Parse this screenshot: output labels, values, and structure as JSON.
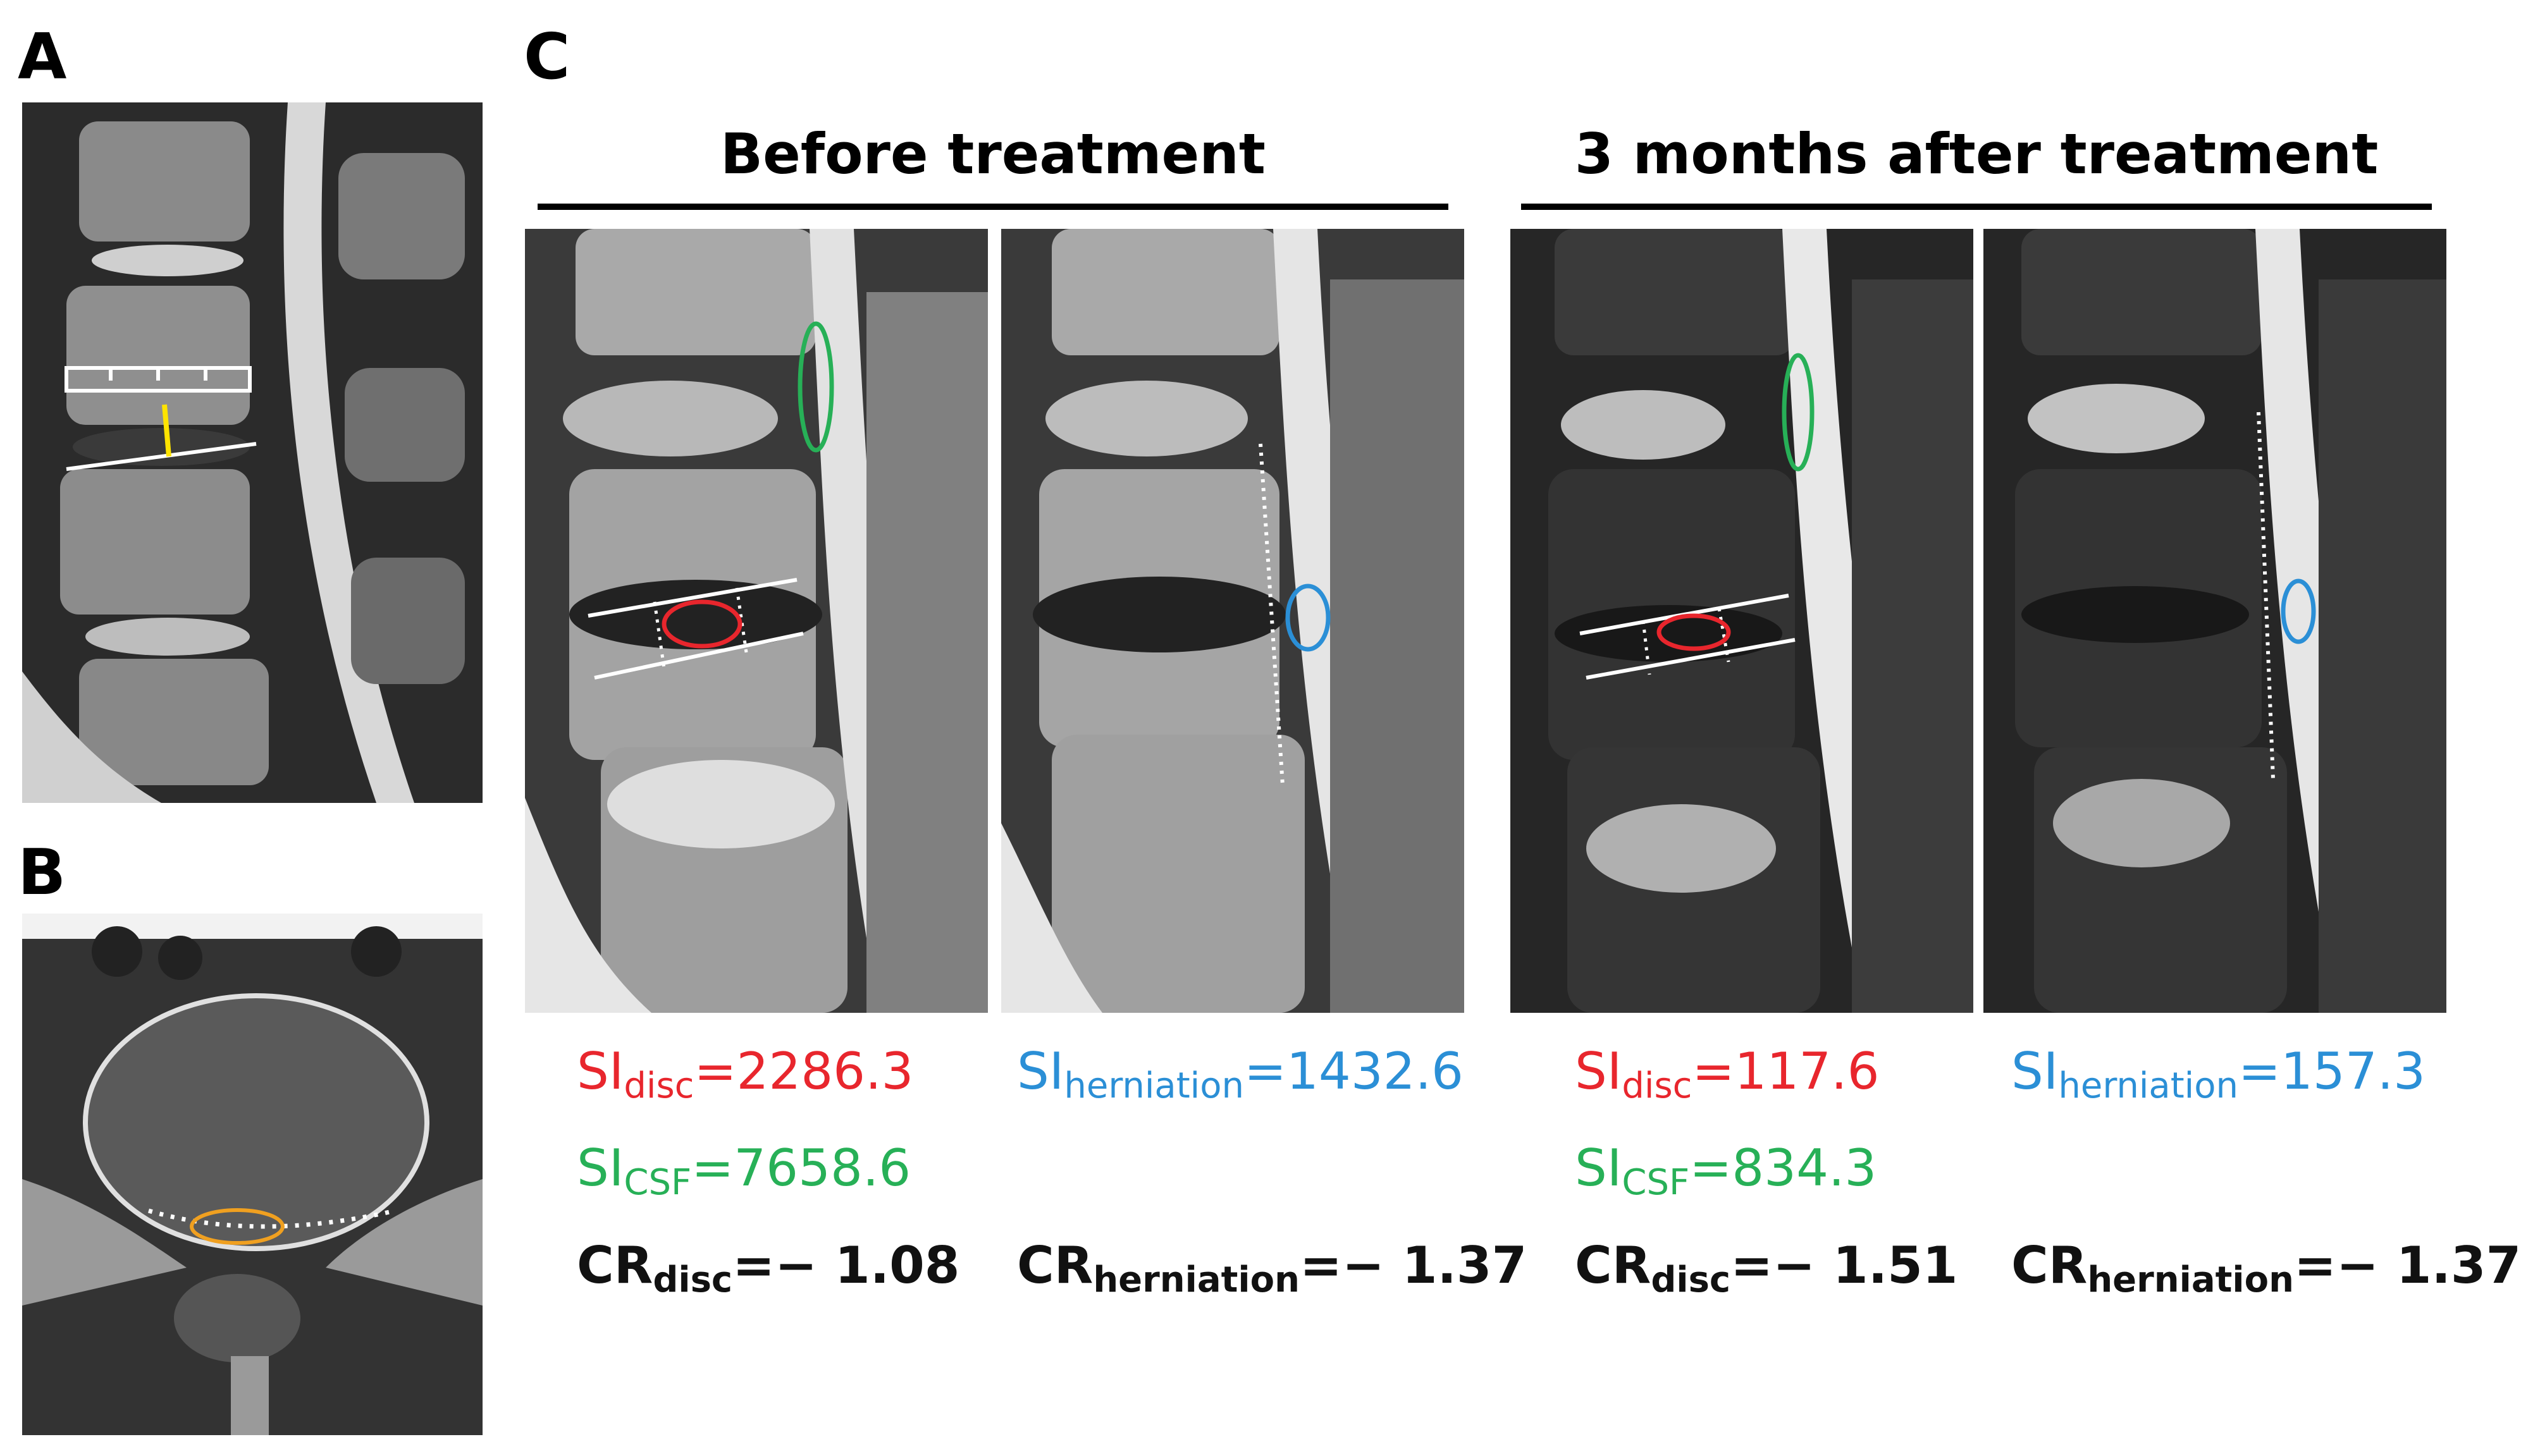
{
  "panels": {
    "a": "A",
    "b": "B",
    "c": "C"
  },
  "sections": {
    "before": "Before treatment",
    "after": "3 months after treatment"
  },
  "metrics": {
    "before_disc": {
      "si_disc_label": "SI",
      "si_disc_sub": "disc",
      "si_disc_value": "=2286.3",
      "si_csf_label": "SI",
      "si_csf_sub": "CSF",
      "si_csf_value": "=7658.6",
      "cr_label": "CR",
      "cr_sub": "disc",
      "cr_value": "=− 1.08"
    },
    "before_herniation": {
      "si_label": "SI",
      "si_sub": "herniation",
      "si_value": "=1432.6",
      "cr_label": "CR",
      "cr_sub": "herniation",
      "cr_value": "=− 1.37"
    },
    "after_disc": {
      "si_disc_label": "SI",
      "si_disc_sub": "disc",
      "si_disc_value": "=117.6",
      "si_csf_label": "SI",
      "si_csf_sub": "CSF",
      "si_csf_value": "=834.3",
      "cr_label": "CR",
      "cr_sub": "disc",
      "cr_value": "=− 1.51"
    },
    "after_herniation": {
      "si_label": "SI",
      "si_sub": "herniation",
      "si_value": "=157.3",
      "cr_label": "CR",
      "cr_sub": "herniation",
      "cr_value": "=− 1.37"
    }
  },
  "colors": {
    "disc_roi": "#e8262d",
    "csf_roi": "#27b057",
    "herniation_roi": "#2b8fd6",
    "height_marker": "#ffe400",
    "axial_roi": "#f0a020"
  }
}
